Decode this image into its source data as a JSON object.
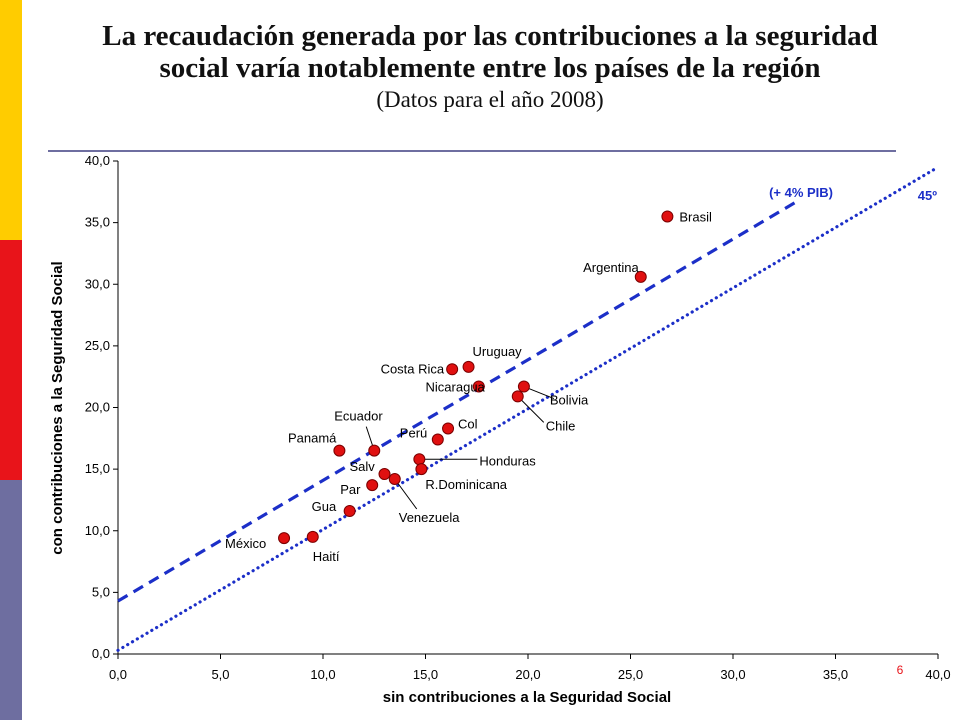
{
  "colors": {
    "accent_yellow": "#FFCC00",
    "accent_red": "#E8141A",
    "accent_blue": "#6E6EA0",
    "series_line": "#1C2FC8",
    "point_fill": "#E01010"
  },
  "slide": {
    "title_line1": "La recaudación generada por las contribuciones a la seguridad",
    "title_line2": "social varía notablemente entre los países de la región",
    "subtitle": "(Datos para el año 2008)",
    "page_number": "6"
  },
  "chart_data": {
    "type": "scatter",
    "xlabel": "sin contribuciones a la Seguridad Social",
    "ylabel": "con contribuciones a la Seguridad Social",
    "xlim": [
      0,
      40
    ],
    "ylim": [
      0,
      40
    ],
    "x_ticks": [
      "0,0",
      "5,0",
      "10,0",
      "15,0",
      "20,0",
      "25,0",
      "30,0",
      "35,0",
      "40,0"
    ],
    "y_ticks": [
      "0,0",
      "5,0",
      "10,0",
      "15,0",
      "20,0",
      "25,0",
      "30,0",
      "35,0",
      "40,0"
    ],
    "lines": [
      {
        "name": "45º",
        "label": "45º",
        "style": "dotted",
        "x": [
          0,
          40
        ],
        "y": [
          0.3,
          39.5
        ]
      },
      {
        "name": "+4% PIB",
        "label": "(+ 4% PIB)",
        "style": "dashed",
        "x": [
          0,
          33
        ],
        "y": [
          4.3,
          36.6
        ]
      }
    ],
    "points": [
      {
        "label": "Brasil",
        "x": 26.8,
        "y": 35.5
      },
      {
        "label": "Argentina",
        "x": 25.5,
        "y": 30.6
      },
      {
        "label": "Uruguay",
        "x": 17.1,
        "y": 23.3
      },
      {
        "label": "Costa Rica",
        "x": 16.3,
        "y": 23.1
      },
      {
        "label": "Nicaragua",
        "x": 17.6,
        "y": 21.7
      },
      {
        "label": "Bolivia",
        "x": 19.8,
        "y": 21.7
      },
      {
        "label": "Chile",
        "x": 19.5,
        "y": 20.9
      },
      {
        "label": "Ecuador",
        "x": 12.5,
        "y": 16.5
      },
      {
        "label": "Panamá",
        "x": 10.8,
        "y": 16.5
      },
      {
        "label": "Col",
        "x": 16.1,
        "y": 18.3
      },
      {
        "label": "Perú",
        "x": 15.6,
        "y": 17.4
      },
      {
        "label": "Honduras",
        "x": 14.7,
        "y": 15.8
      },
      {
        "label": "R.Dominicana",
        "x": 14.8,
        "y": 15.0
      },
      {
        "label": "Salv",
        "x": 13.0,
        "y": 14.6
      },
      {
        "label": "Venezuela",
        "x": 13.5,
        "y": 14.2
      },
      {
        "label": "Par",
        "x": 12.4,
        "y": 13.7
      },
      {
        "label": "Gua",
        "x": 11.3,
        "y": 11.6
      },
      {
        "label": "México",
        "x": 8.1,
        "y": 9.4
      },
      {
        "label": "Haití",
        "x": 9.5,
        "y": 9.5
      }
    ]
  }
}
